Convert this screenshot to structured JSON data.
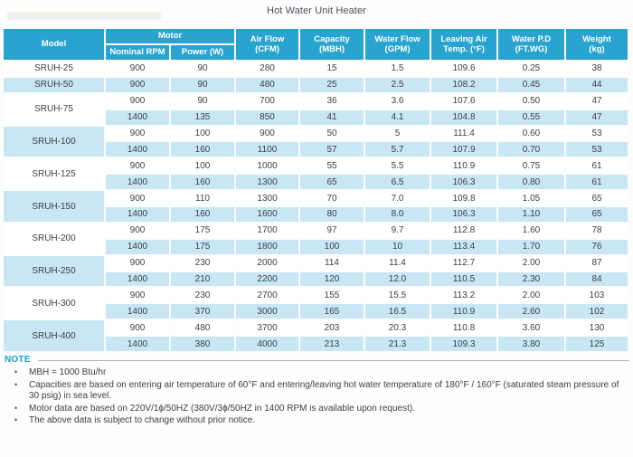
{
  "title": "Hot Water Unit Heater",
  "colors": {
    "header_bg": "#29a4d0",
    "row_alt": "#c8e6f3",
    "note_accent": "#1b9cd6",
    "text": "#3d4047"
  },
  "table": {
    "headers": {
      "model": "Model",
      "motor": "Motor",
      "nominal_rpm": "Nominal RPM",
      "power": "Power (W)",
      "air_flow_1": "Air Flow",
      "air_flow_2": "(CFM)",
      "capacity_1": "Capacity",
      "capacity_2": "(MBH)",
      "water_flow_1": "Water Flow",
      "water_flow_2": "(GPM)",
      "leaving_air_1": "Leaving Air",
      "leaving_air_2": "Temp. (°F)",
      "water_pd_1": "Water P.D",
      "water_pd_2": "(FT.WG)",
      "weight_1": "Weight",
      "weight_2": "(kg)"
    },
    "groups": [
      {
        "model": "SRUH-25",
        "rows": [
          [
            "900",
            "90",
            "280",
            "15",
            "1.5",
            "109.6",
            "0.25",
            "38"
          ]
        ]
      },
      {
        "model": "SRUH-50",
        "rows": [
          [
            "900",
            "90",
            "480",
            "25",
            "2.5",
            "108.2",
            "0.45",
            "44"
          ]
        ]
      },
      {
        "model": "SRUH-75",
        "rows": [
          [
            "900",
            "90",
            "700",
            "36",
            "3.6",
            "107.6",
            "0.50",
            "47"
          ],
          [
            "1400",
            "135",
            "850",
            "41",
            "4.1",
            "104.8",
            "0.55",
            "47"
          ]
        ]
      },
      {
        "model": "SRUH-100",
        "rows": [
          [
            "900",
            "100",
            "900",
            "50",
            "5",
            "111.4",
            "0.60",
            "53"
          ],
          [
            "1400",
            "160",
            "1100",
            "57",
            "5.7",
            "107.9",
            "0.70",
            "53"
          ]
        ]
      },
      {
        "model": "SRUH-125",
        "rows": [
          [
            "900",
            "100",
            "1000",
            "55",
            "5.5",
            "110.9",
            "0.75",
            "61"
          ],
          [
            "1400",
            "160",
            "1300",
            "65",
            "6.5",
            "106.3",
            "0.80",
            "61"
          ]
        ]
      },
      {
        "model": "SRUH-150",
        "rows": [
          [
            "900",
            "110",
            "1300",
            "70",
            "7.0",
            "109.8",
            "1.05",
            "65"
          ],
          [
            "1400",
            "160",
            "1600",
            "80",
            "8.0",
            "106.3",
            "1.10",
            "65"
          ]
        ]
      },
      {
        "model": "SRUH-200",
        "rows": [
          [
            "900",
            "175",
            "1700",
            "97",
            "9.7",
            "112.8",
            "1.60",
            "78"
          ],
          [
            "1400",
            "175",
            "1800",
            "100",
            "10",
            "113.4",
            "1.70",
            "76"
          ]
        ]
      },
      {
        "model": "SRUH-250",
        "rows": [
          [
            "900",
            "230",
            "2000",
            "114",
            "11.4",
            "112.7",
            "2.00",
            "87"
          ],
          [
            "1400",
            "210",
            "2200",
            "120",
            "12.0",
            "110.5",
            "2.30",
            "84"
          ]
        ]
      },
      {
        "model": "SRUH-300",
        "rows": [
          [
            "900",
            "230",
            "2700",
            "155",
            "15.5",
            "113.2",
            "2.00",
            "103"
          ],
          [
            "1400",
            "370",
            "3000",
            "165",
            "16.5",
            "110.9",
            "2.60",
            "102"
          ]
        ]
      },
      {
        "model": "SRUH-400",
        "rows": [
          [
            "900",
            "480",
            "3700",
            "203",
            "20.3",
            "110.8",
            "3.60",
            "130"
          ],
          [
            "1400",
            "380",
            "4000",
            "213",
            "21.3",
            "109.3",
            "3.80",
            "125"
          ]
        ]
      }
    ]
  },
  "note": {
    "label": "NOTE",
    "items": [
      "MBH = 1000 Btu/hr",
      "Capacities are based on entering air temperature of 60°F and entering/leaving hot water temperature of 180°F / 160°F (saturated steam pressure of 30 psig) in sea level.",
      "Motor data are based on 220V/1ϕ/50HZ (380V/3ϕ/50HZ in 1400 RPM is available upon request).",
      "The above data is subject to change without prior notice."
    ]
  }
}
